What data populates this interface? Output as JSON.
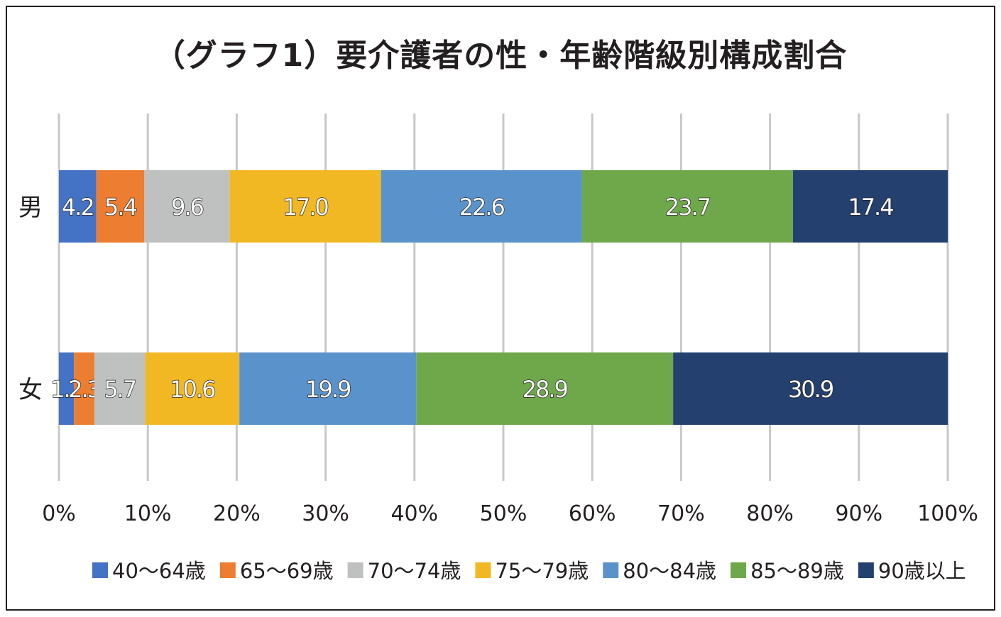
{
  "title": "（グラフ1）要介護者の性・年齢階級別構成割合",
  "chart_data": {
    "type": "bar",
    "orientation": "horizontal",
    "stacked": "percent",
    "title": "（グラフ1）要介護者の性・年齢階級別構成割合",
    "categories": [
      "男",
      "女"
    ],
    "x_ticks": [
      "0%",
      "10%",
      "20%",
      "30%",
      "40%",
      "50%",
      "60%",
      "70%",
      "80%",
      "90%",
      "100%"
    ],
    "xlim": [
      0,
      100
    ],
    "grid": "vertical",
    "legend_position": "bottom",
    "series": [
      {
        "name": "40～64歳",
        "color": "#4472c4",
        "values": [
          4.2,
          1.7
        ],
        "labels": [
          "4.2",
          "1.7"
        ]
      },
      {
        "name": "65～69歳",
        "color": "#ed7d31",
        "values": [
          5.4,
          2.3
        ],
        "labels": [
          "5.4",
          "2.3"
        ]
      },
      {
        "name": "70～74歳",
        "color": "#bfc1c0",
        "values": [
          9.6,
          5.7
        ],
        "labels": [
          "9.6",
          "5.7"
        ]
      },
      {
        "name": "75～79歳",
        "color": "#f2b824",
        "values": [
          17.0,
          10.6
        ],
        "labels": [
          "17.0",
          "10.6"
        ]
      },
      {
        "name": "80～84歳",
        "color": "#5a92cb",
        "values": [
          22.6,
          19.9
        ],
        "labels": [
          "22.6",
          "19.9"
        ]
      },
      {
        "name": "85～89歳",
        "color": "#6fa84b",
        "values": [
          23.7,
          28.9
        ],
        "labels": [
          "23.7",
          "28.9"
        ]
      },
      {
        "name": "90歳以上",
        "color": "#24406f",
        "values": [
          17.4,
          30.9
        ],
        "labels": [
          "17.4",
          "30.9"
        ]
      }
    ]
  }
}
